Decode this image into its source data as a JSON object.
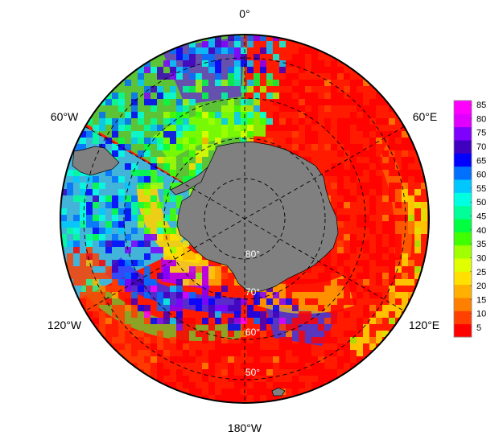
{
  "map": {
    "longitude_labels": {
      "top": "0°",
      "upper_left": "60°W",
      "upper_right": "60°E",
      "lower_left": "120°W",
      "lower_right": "120°E",
      "bottom": "180°W"
    },
    "latitude_labels": [
      "80°",
      "70°",
      "60°",
      "50°"
    ],
    "land_color": "#808080",
    "projection": "south-polar-stereographic"
  },
  "colorbar": {
    "ticks": [
      "85",
      "80",
      "75",
      "70",
      "65",
      "60",
      "55",
      "50",
      "45",
      "40",
      "35",
      "30",
      "25",
      "20",
      "15",
      "10",
      "5"
    ],
    "colors": [
      "#ff0000",
      "#ff4000",
      "#ff8000",
      "#ffb000",
      "#ffe000",
      "#e0ff00",
      "#a0ff00",
      "#40ff00",
      "#00ff40",
      "#00ff99",
      "#00ffe0",
      "#00c8ff",
      "#0070ff",
      "#0000ff",
      "#4000c0",
      "#8000ff",
      "#e000ff",
      "#ff00ff"
    ]
  }
}
